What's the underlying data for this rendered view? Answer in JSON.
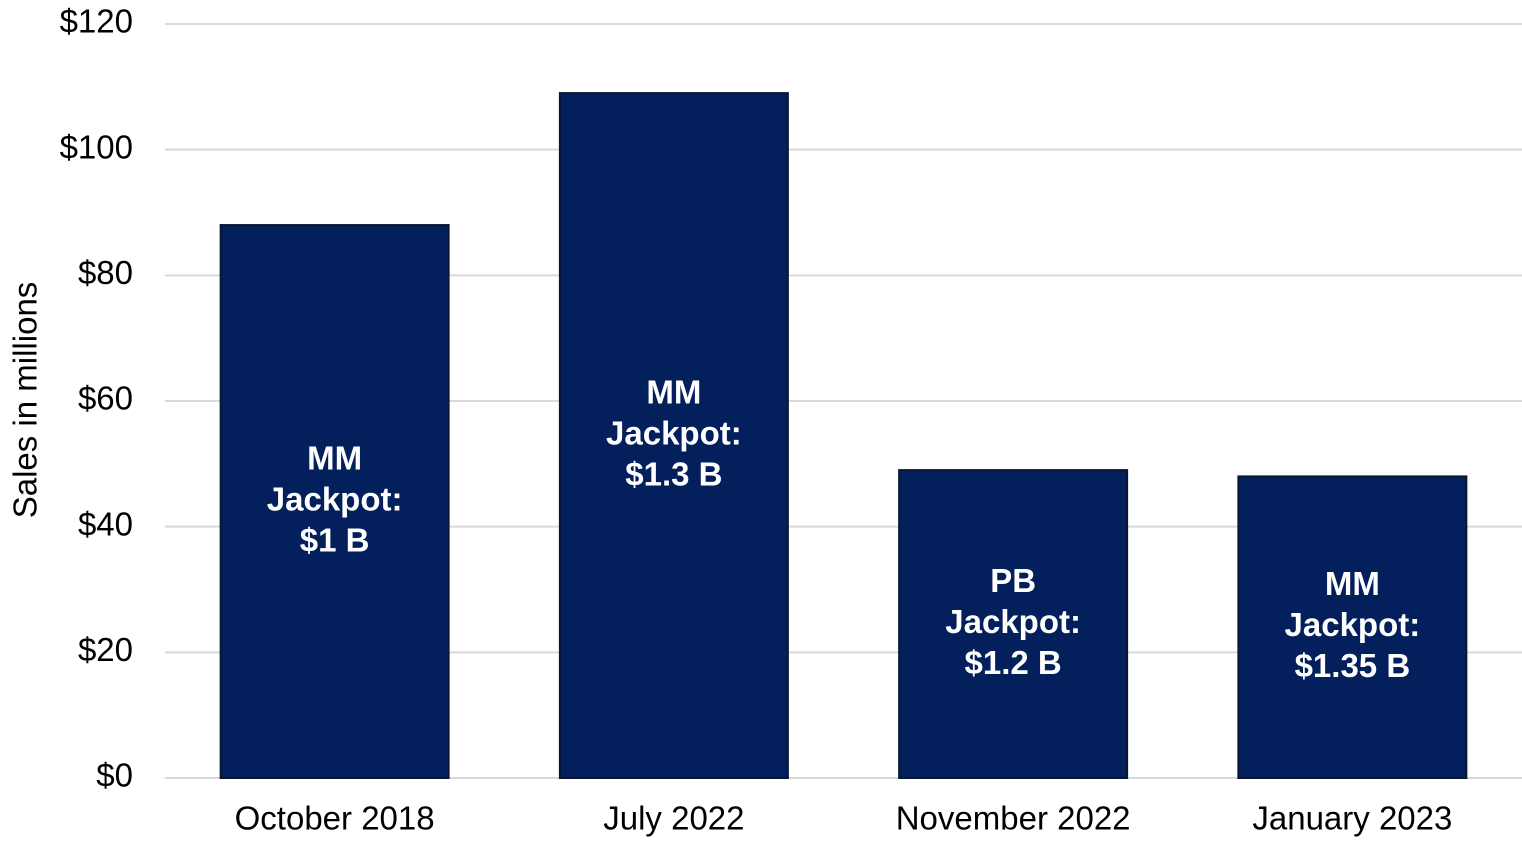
{
  "chart_data": {
    "type": "bar",
    "y_label": "Sales in millions",
    "categories": [
      "October 2018",
      "July 2022",
      "November 2022",
      "January 2023"
    ],
    "values": [
      88,
      109,
      49,
      48
    ],
    "annotations": [
      [
        "MM",
        "Jackpot:",
        "$1 B"
      ],
      [
        "MM",
        "Jackpot:",
        "$1.3 B"
      ],
      [
        "PB",
        "Jackpot:",
        "$1.2 B"
      ],
      [
        "MM",
        "Jackpot:",
        "$1.35 B"
      ]
    ],
    "color": "#03205c",
    "ylim": [
      0,
      120
    ],
    "yticks": [
      {
        "value": 0,
        "label": "$0"
      },
      {
        "value": 20,
        "label": "$20"
      },
      {
        "value": 40,
        "label": "$40"
      },
      {
        "value": 60,
        "label": "$60"
      },
      {
        "value": 80,
        "label": "$80"
      },
      {
        "value": 100,
        "label": "$100"
      },
      {
        "value": 120,
        "label": "$120"
      }
    ],
    "grid": true
  }
}
